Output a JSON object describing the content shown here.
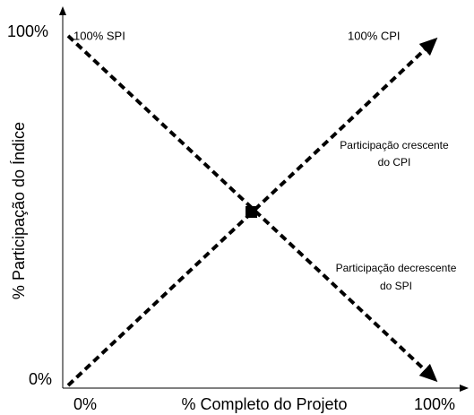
{
  "axes": {
    "y_label": "% Participação do Índice",
    "x_label": "% Completo do Projeto",
    "y_ticks": [
      "100%",
      "0%"
    ],
    "x_ticks": [
      "0%",
      "100%"
    ]
  },
  "annotations": {
    "spi_start": "100% SPI",
    "cpi_end": "100% CPI",
    "cpi_note": [
      "Participação crescente",
      "do CPI"
    ],
    "spi_note": [
      "Participação decrescente",
      "do SPI"
    ]
  }
}
